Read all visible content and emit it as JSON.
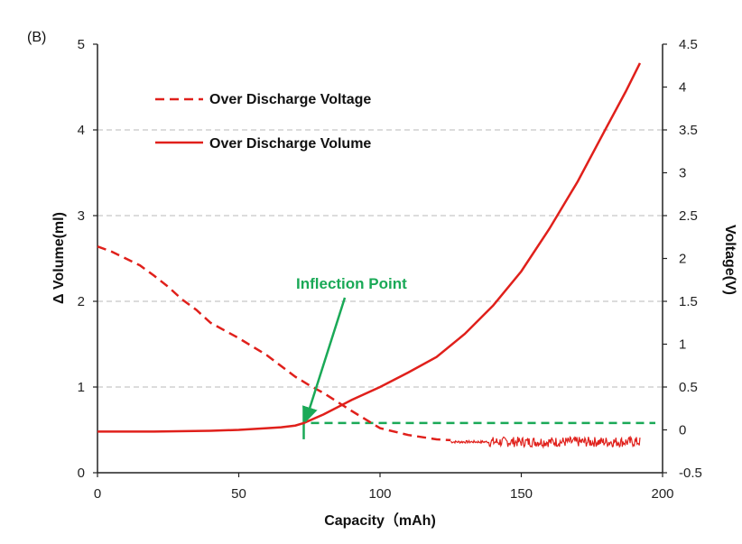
{
  "chart_data": {
    "type": "line",
    "panel_label": "(B)",
    "xlabel": "Capacity（mAh)",
    "ylabel_left": "Δ Volume(ml)",
    "ylabel_right": "Voltage(V)",
    "xlim": [
      0,
      200
    ],
    "ylim_left": [
      0,
      5
    ],
    "ylim_right": [
      -0.5,
      4.5
    ],
    "x_ticks": [
      "0",
      "50",
      "100",
      "150",
      "200"
    ],
    "y_left_ticks": [
      "0",
      "1",
      "2",
      "3",
      "4",
      "5"
    ],
    "y_right_ticks": [
      "-0.5",
      "0",
      "0.5",
      "1",
      "1.5",
      "2",
      "2.5",
      "3",
      "3.5",
      "4",
      "4.5"
    ],
    "grid": "horizontal dashed",
    "legend_position": "top-left",
    "colors": {
      "series": "#e0201b",
      "annotation": "#1aa957",
      "grid": "#c8c8c8"
    },
    "series": [
      {
        "name": "Over Discharge Voltage",
        "axis": "right",
        "style": "dashed",
        "x": [
          0,
          5,
          10,
          15,
          20,
          25,
          30,
          35,
          40,
          50,
          60,
          70,
          75,
          80,
          90,
          100,
          110,
          120,
          125
        ],
        "y": [
          2.14,
          2.08,
          2.0,
          1.92,
          1.8,
          1.67,
          1.52,
          1.4,
          1.25,
          1.07,
          0.87,
          0.62,
          0.52,
          0.43,
          0.22,
          0.02,
          -0.06,
          -0.11,
          -0.12
        ]
      },
      {
        "name": "Over Discharge Voltage (noisy tail)",
        "axis": "right",
        "style": "noisy",
        "x_range": [
          125,
          192
        ],
        "y_center": -0.14,
        "amplitude": [
          0.03,
          0.12
        ]
      },
      {
        "name": "Over Discharge Volume",
        "axis": "left",
        "style": "solid",
        "x": [
          0,
          20,
          40,
          50,
          60,
          65,
          70,
          73,
          80,
          90,
          100,
          110,
          120,
          130,
          140,
          150,
          160,
          170,
          180,
          187,
          192
        ],
        "y": [
          0.48,
          0.48,
          0.49,
          0.5,
          0.52,
          0.53,
          0.55,
          0.58,
          0.68,
          0.85,
          1.0,
          1.17,
          1.35,
          1.62,
          1.95,
          2.35,
          2.85,
          3.4,
          4.02,
          4.45,
          4.78
        ]
      }
    ],
    "annotations": [
      {
        "text": "Inflection Point",
        "arrow_to": {
          "x": 73,
          "y_left": 0.58
        },
        "reference_line_left": 0.58,
        "reference_line_start_x": 73
      }
    ]
  }
}
